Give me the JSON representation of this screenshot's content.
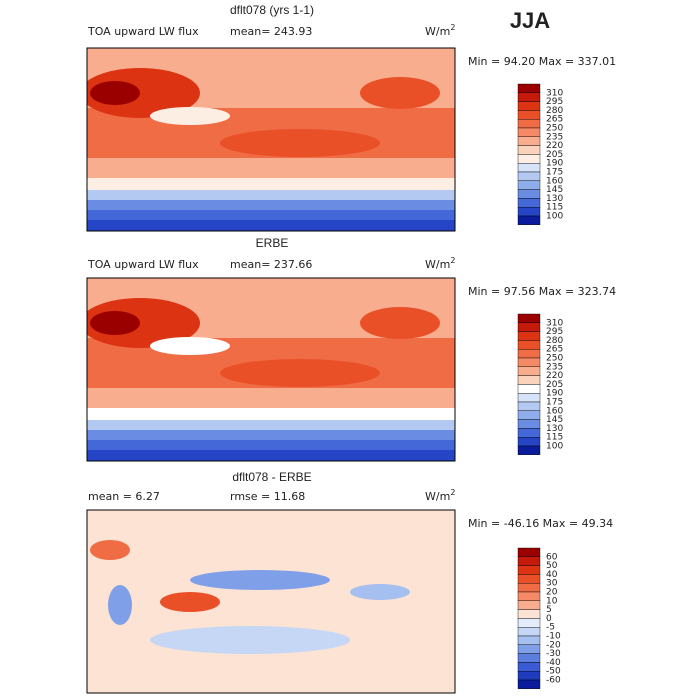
{
  "season": "JJA",
  "panels": [
    {
      "title": "dflt078 (yrs 1-1)",
      "left_label": "TOA upward LW flux",
      "mid_label": "mean= 243.93",
      "units": "W/m",
      "units_power": "2",
      "range": "Min =  94.20 Max = 337.01",
      "colorbar_labels": [
        "310",
        "295",
        "280",
        "265",
        "250",
        "235",
        "220",
        "205",
        "190",
        "175",
        "160",
        "145",
        "130",
        "115",
        "100"
      ],
      "colors": [
        "#9b0000",
        "#c41a0a",
        "#dc3412",
        "#e95028",
        "#ef6c45",
        "#f48a66",
        "#f8ad8e",
        "#fbd2bb",
        "#fdeee4",
        "#d6e3f8",
        "#b3c9f2",
        "#8fadeb",
        "#6a8ce2",
        "#4568d8",
        "#2644c6",
        "#0a1c9c"
      ]
    },
    {
      "title": "ERBE",
      "left_label": "TOA upward LW flux",
      "mid_label": "mean= 237.66",
      "units": "W/m",
      "units_power": "2",
      "range": "Min =  97.56 Max = 323.74",
      "colorbar_labels": [
        "310",
        "295",
        "280",
        "265",
        "250",
        "235",
        "220",
        "205",
        "190",
        "175",
        "160",
        "145",
        "130",
        "115",
        "100"
      ],
      "colors": [
        "#9b0000",
        "#c41a0a",
        "#dc3412",
        "#e95028",
        "#ef6c45",
        "#f48a66",
        "#f8ad8e",
        "#fbd2bb",
        "#ffffff",
        "#d6e3f8",
        "#b3c9f2",
        "#8fadeb",
        "#6a8ce2",
        "#4568d8",
        "#2644c6",
        "#0a1c9c"
      ]
    },
    {
      "title": "dflt078 - ERBE",
      "left_label": "mean =   6.27",
      "mid_label": "rmse =  11.68",
      "units": "W/m",
      "units_power": "2",
      "range": "Min = -46.16 Max =  49.34",
      "colorbar_labels": [
        "60",
        "50",
        "40",
        "30",
        "20",
        "10",
        "5",
        "0",
        "-5",
        "-10",
        "-20",
        "-30",
        "-40",
        "-50",
        "-60"
      ],
      "colors": [
        "#9b0000",
        "#c41a0a",
        "#dc3412",
        "#e95028",
        "#ef6c45",
        "#f48a66",
        "#f8ad8e",
        "#fde3d4",
        "#e4ecfa",
        "#c6d7f5",
        "#a5bff0",
        "#7f9fe8",
        "#5b7edf",
        "#3a5bd3",
        "#1f3bbe",
        "#0a1c9c"
      ]
    }
  ]
}
